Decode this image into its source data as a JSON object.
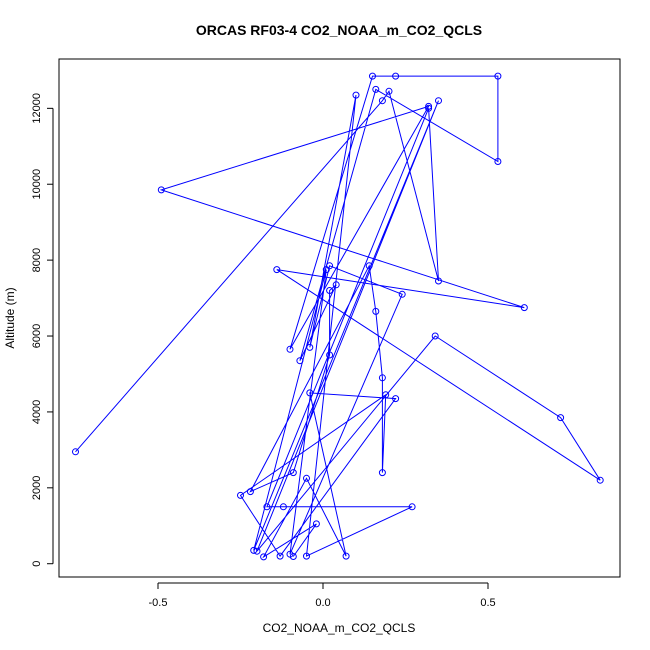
{
  "chart_data": {
    "type": "scatter",
    "title": "ORCAS RF03-4 CO2_NOAA_m_CO2_QCLS",
    "xlabel": "CO2_NOAA_m_CO2_QCLS",
    "ylabel": "Altitude (m)",
    "xlim": [
      -0.8,
      0.9
    ],
    "ylim": [
      -350,
      13300
    ],
    "xticks": [
      -0.5,
      0.0,
      0.5
    ],
    "xtick_labels": [
      "-0.5",
      "0.0",
      "0.5"
    ],
    "yticks": [
      0,
      2000,
      4000,
      6000,
      8000,
      10000,
      12000
    ],
    "ytick_labels": [
      "0",
      "2000",
      "4000",
      "6000",
      "8000",
      "10000",
      "12000"
    ],
    "grid": false,
    "color": "#0000ff",
    "marker": "open-circle",
    "connected": true,
    "series": [
      {
        "points": [
          [
            -0.75,
            2950
          ],
          [
            0.18,
            12200
          ],
          [
            0.2,
            12450
          ],
          [
            0.35,
            7450
          ],
          [
            0.32,
            12000
          ],
          [
            -0.17,
            1500
          ],
          [
            -0.12,
            1500
          ],
          [
            0.27,
            1500
          ],
          [
            -0.05,
            200
          ],
          [
            0.1,
            12350
          ],
          [
            -0.04,
            5700
          ],
          [
            0.02,
            7850
          ],
          [
            0.24,
            7100
          ],
          [
            -0.1,
            250
          ],
          [
            0.01,
            7750
          ],
          [
            -0.21,
            350
          ],
          [
            0.35,
            12200
          ],
          [
            -0.2,
            330
          ],
          [
            0.34,
            6000
          ],
          [
            0.72,
            3850
          ],
          [
            0.84,
            2200
          ],
          [
            -0.14,
            7750
          ],
          [
            0.61,
            6750
          ],
          [
            -0.49,
            9850
          ],
          [
            0.32,
            12050
          ],
          [
            -0.1,
            5650
          ],
          [
            0.15,
            12850
          ],
          [
            0.22,
            12850
          ],
          [
            0.53,
            12850
          ],
          [
            0.53,
            10600
          ],
          [
            0.16,
            12500
          ],
          [
            -0.07,
            5350
          ],
          [
            0.04,
            7350
          ],
          [
            0.02,
            7200
          ],
          [
            0.02,
            5500
          ],
          [
            -0.09,
            2400
          ],
          [
            -0.22,
            1900
          ],
          [
            0.14,
            7850
          ],
          [
            0.16,
            6650
          ],
          [
            0.18,
            4900
          ],
          [
            0.18,
            2400
          ],
          [
            0.19,
            4450
          ],
          [
            -0.25,
            1800
          ],
          [
            -0.13,
            200
          ],
          [
            0.22,
            4350
          ],
          [
            -0.04,
            4500
          ],
          [
            0.07,
            200
          ],
          [
            -0.05,
            2250
          ],
          [
            -0.18,
            180
          ],
          [
            -0.02,
            1050
          ],
          [
            -0.09,
            190
          ]
        ]
      }
    ]
  }
}
